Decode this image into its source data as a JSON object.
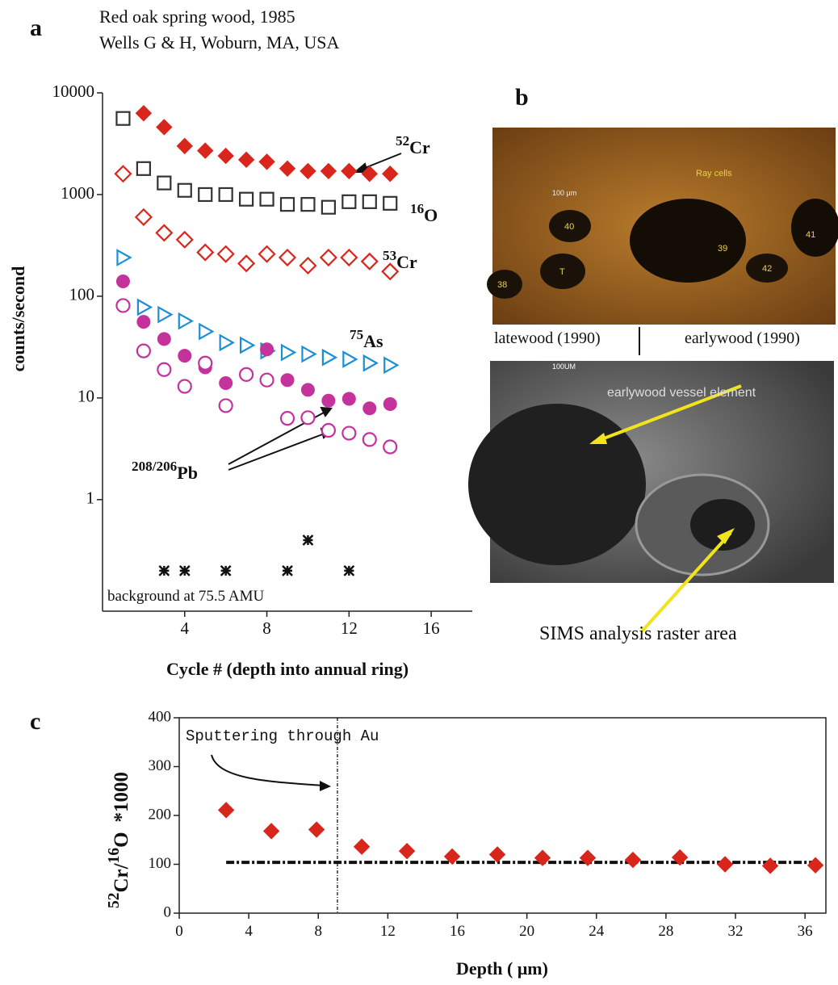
{
  "panel_labels": [
    "a",
    "b",
    "c"
  ],
  "header": [
    "Red oak spring wood, 1985",
    "Wells G & H, Woburn, MA, USA"
  ],
  "chart_data": [
    {
      "type": "scatter",
      "y_scale": "log",
      "xlabel": "Cycle # (depth into annual ring)",
      "ylabel": "counts/second",
      "xlim": [
        0,
        18
      ],
      "ylim": [
        0.08,
        10000
      ],
      "xticks": [
        4,
        8,
        12,
        16
      ],
      "yticks": [
        1,
        10,
        100,
        1000,
        10000
      ],
      "x": [
        1,
        2,
        3,
        4,
        5,
        6,
        7,
        8,
        9,
        10,
        11,
        12,
        13,
        14
      ],
      "series": [
        {
          "marker": "diamond-filled",
          "color": "#d9261c",
          "values": [
            null,
            6300,
            4600,
            3000,
            2700,
            2400,
            2200,
            2100,
            1800,
            1700,
            1700,
            1700,
            1600,
            1600
          ]
        },
        {
          "marker": "square-open",
          "color": "#333333",
          "values": [
            5600,
            1800,
            1300,
            1100,
            1000,
            1000,
            900,
            900,
            800,
            800,
            750,
            850,
            850,
            820
          ]
        },
        {
          "marker": "diamond-open",
          "color": "#d9261c",
          "values": [
            1600,
            600,
            420,
            360,
            270,
            260,
            210,
            260,
            240,
            200,
            240,
            240,
            220,
            175
          ]
        },
        {
          "marker": "triangle-open",
          "color": "#1b8fd6",
          "values": [
            240,
            78,
            66,
            57,
            45,
            35,
            33,
            29,
            28,
            27,
            25,
            24,
            22,
            21
          ]
        },
        {
          "marker": "circle-filled",
          "color": "#c4329c",
          "values": [
            140,
            56,
            38,
            26,
            20,
            14,
            null,
            30,
            15,
            12,
            9.4,
            9.8,
            7.9,
            8.7
          ]
        },
        {
          "marker": "circle-open",
          "color": "#c4329c",
          "values": [
            81,
            29,
            19,
            13,
            22,
            8.4,
            17,
            15,
            6.3,
            6.4,
            4.8,
            4.5,
            3.9,
            3.3
          ]
        },
        {
          "marker": "asterisk",
          "color": "#111111",
          "x": [
            3,
            4,
            6,
            9,
            10,
            12
          ],
          "values": [
            0.2,
            0.2,
            0.2,
            0.2,
            0.4,
            0.2
          ]
        }
      ],
      "annotations": [
        {
          "mass": "52",
          "element": "Cr"
        },
        {
          "mass": "16",
          "element": "O"
        },
        {
          "mass": "53",
          "element": "Cr"
        },
        {
          "mass": "75",
          "element": "As"
        },
        {
          "mass": "208/206",
          "element": "Pb"
        }
      ],
      "note": "background at 75.5 AMU"
    },
    {
      "type": "scatter",
      "xlabel": "Depth ( μm)",
      "ylabel_parts": [
        "52",
        "Cr/",
        "16",
        "O",
        "*1000"
      ],
      "xlim": [
        0,
        37.2
      ],
      "ylim": [
        0,
        400
      ],
      "xticks": [
        0,
        4,
        8,
        12,
        16,
        20,
        24,
        28,
        32,
        36
      ],
      "yticks": [
        0,
        100,
        200,
        300,
        400
      ],
      "x": [
        2.7,
        5.3,
        7.9,
        10.5,
        13.1,
        15.7,
        18.3,
        20.9,
        23.5,
        26.1,
        28.8,
        31.4,
        34.0,
        36.6
      ],
      "color": "#d9261c",
      "values": [
        211,
        168,
        171,
        136,
        127,
        116,
        120,
        113,
        113,
        109,
        114,
        100,
        97,
        98
      ],
      "hline": {
        "value": 104,
        "from": 2.7,
        "to": 36.6
      },
      "vline": 9.1,
      "annotation": "Sputtering through Au"
    }
  ],
  "micrographs": {
    "top_labels": [
      "Ray cells",
      "100 μm",
      "40",
      "39",
      "41",
      "42",
      "T",
      "38"
    ],
    "captions": [
      "latewood (1990)",
      "earlywood (1990)"
    ],
    "bottom_labels": [
      "100UM",
      "earlywood vessel element"
    ],
    "bottom_caption": "SIMS analysis raster area"
  }
}
